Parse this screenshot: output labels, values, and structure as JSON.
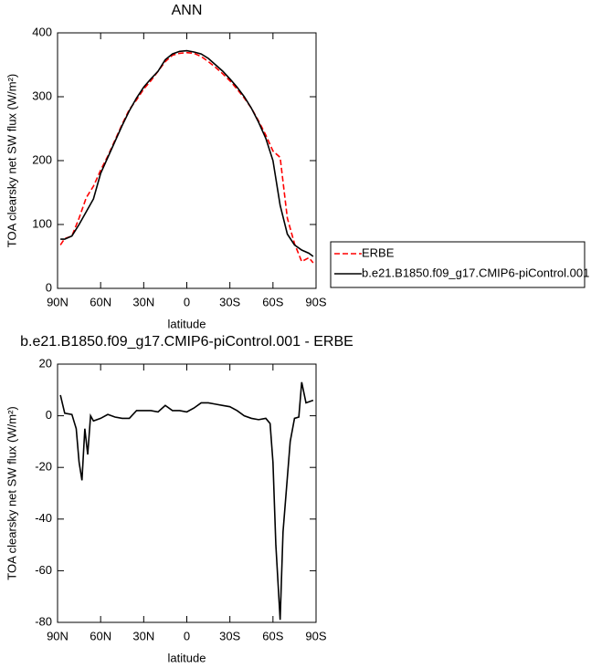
{
  "chart_data": [
    {
      "type": "line",
      "title": "ANN",
      "x_label": "latitude",
      "y_label": "TOA clearsky net SW flux (W/m²)",
      "x": [
        88,
        85,
        80,
        75,
        70,
        65,
        60,
        55,
        50,
        45,
        40,
        35,
        30,
        25,
        20,
        15,
        10,
        5,
        0,
        -5,
        -10,
        -15,
        -20,
        -25,
        -30,
        -35,
        -40,
        -45,
        -50,
        -55,
        -60,
        -65,
        -70,
        -75,
        -80,
        -85,
        -88
      ],
      "series": [
        {
          "name": "ERBE",
          "color": "#ff0000",
          "dash": "dashed",
          "values": [
            68,
            78,
            82,
            110,
            142,
            160,
            185,
            207,
            232,
            257,
            280,
            295,
            312,
            325,
            340,
            355,
            365,
            368,
            369,
            368,
            363,
            355,
            346,
            336,
            325,
            312,
            298,
            282,
            262,
            240,
            215,
            205,
            110,
            70,
            42,
            48,
            40
          ]
        },
        {
          "name": "b.e21.B1850.f09_g17.CMIP6-piControl.001",
          "color": "#000000",
          "dash": "solid",
          "values": [
            77,
            77,
            82,
            100,
            120,
            140,
            180,
            205,
            230,
            255,
            278,
            298,
            315,
            328,
            340,
            358,
            367,
            371,
            372,
            370,
            367,
            360,
            350,
            340,
            328,
            315,
            300,
            282,
            260,
            235,
            200,
            130,
            85,
            68,
            60,
            55,
            50
          ]
        }
      ],
      "xlim": [
        90,
        -90
      ],
      "xticks": [
        {
          "value": 90,
          "label": "90N"
        },
        {
          "value": 60,
          "label": "60N"
        },
        {
          "value": 30,
          "label": "30N"
        },
        0,
        {
          "value": -30,
          "label": "30S"
        },
        {
          "value": -60,
          "label": "60S"
        },
        {
          "value": -90,
          "label": "90S"
        }
      ],
      "ylim": [
        0,
        400
      ],
      "yticks": [
        0,
        100,
        200,
        300,
        400
      ]
    },
    {
      "type": "line",
      "title": "b.e21.B1850.f09_g17.CMIP6-piControl.001 - ERBE",
      "x_label": "latitude",
      "y_label": "TOA clearsky net SW flux (W/m²)",
      "x": [
        88,
        85,
        80,
        77,
        75,
        73,
        71,
        69,
        67,
        65,
        60,
        55,
        50,
        45,
        40,
        35,
        30,
        25,
        20,
        15,
        10,
        5,
        0,
        -5,
        -10,
        -15,
        -20,
        -25,
        -30,
        -35,
        -40,
        -45,
        -50,
        -55,
        -58,
        -60,
        -62,
        -65,
        -67,
        -72,
        -75,
        -78,
        -80,
        -83,
        -88
      ],
      "values": [
        8,
        1,
        0.5,
        -5,
        -18,
        -25,
        -5,
        -15,
        0,
        -2,
        -1,
        0.5,
        -0.5,
        -1,
        -1,
        2,
        2,
        2,
        1.5,
        4,
        2,
        2,
        1.5,
        3,
        5,
        5,
        4.5,
        4,
        3.5,
        2,
        0,
        -1,
        -1.5,
        -1,
        -3,
        -18,
        -50,
        -79,
        -45,
        -10,
        -1,
        -0.5,
        13,
        5,
        6
      ],
      "color": "#000000",
      "xlim": [
        90,
        -90
      ],
      "xticks": [
        {
          "value": 90,
          "label": "90N"
        },
        {
          "value": 60,
          "label": "60N"
        },
        {
          "value": 30,
          "label": "30N"
        },
        0,
        {
          "value": -30,
          "label": "30S"
        },
        {
          "value": -60,
          "label": "60S"
        },
        {
          "value": -90,
          "label": "90S"
        }
      ],
      "ylim": [
        -80,
        20
      ],
      "yticks": [
        -80,
        -60,
        -40,
        -20,
        0,
        20
      ]
    }
  ]
}
